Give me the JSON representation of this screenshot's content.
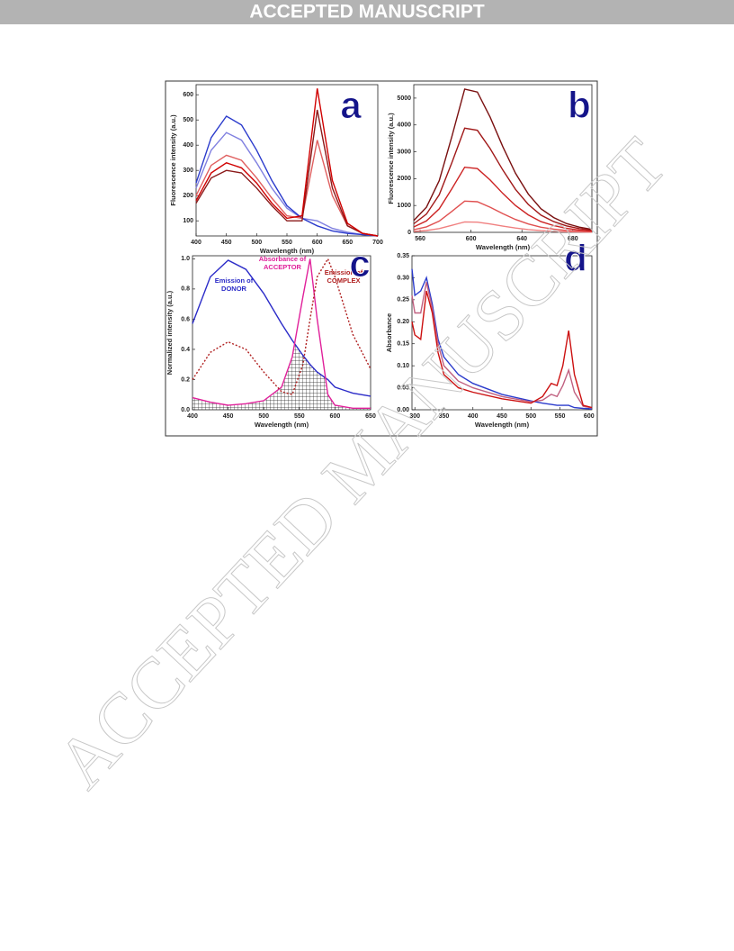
{
  "header": {
    "banner": "ACCEPTED MANUSCRIPT"
  },
  "watermark": "ACCEPTED MANUSCRIPT",
  "chart_data": [
    {
      "type": "line",
      "label": "a",
      "x_label": "Wavelength (nm)",
      "y_label": "Fluorescence intensity (a.u.)",
      "x": [
        400,
        425,
        450,
        475,
        500,
        525,
        550,
        575,
        600,
        625,
        650,
        675,
        700
      ],
      "xlim": [
        400,
        700
      ],
      "xticks": [
        400,
        450,
        500,
        550,
        600,
        650,
        700
      ],
      "ylim": [
        40,
        640
      ],
      "yticks": [
        100,
        200,
        300,
        400,
        500,
        600
      ],
      "series": [
        {
          "color": "#8080e0",
          "values": [
            230,
            380,
            450,
            420,
            330,
            230,
            150,
            110,
            100,
            70,
            55,
            45,
            40
          ]
        },
        {
          "color": "#2b3bcc",
          "values": [
            250,
            430,
            515,
            480,
            380,
            260,
            160,
            110,
            80,
            60,
            50,
            45,
            40
          ]
        },
        {
          "color": "#e06060",
          "values": [
            200,
            320,
            360,
            340,
            270,
            190,
            120,
            110,
            420,
            200,
            80,
            50,
            40
          ]
        },
        {
          "color": "#8b1a1a",
          "values": [
            170,
            270,
            300,
            290,
            230,
            160,
            100,
            100,
            540,
            230,
            80,
            50,
            40
          ]
        },
        {
          "color": "#d00000",
          "values": [
            180,
            290,
            330,
            310,
            250,
            170,
            110,
            120,
            625,
            260,
            90,
            50,
            40
          ]
        }
      ]
    },
    {
      "type": "line",
      "label": "b",
      "x_label": "Wavelength (nm)",
      "y_label": "Fluorescence intensity (a.u.)",
      "x": [
        555,
        565,
        575,
        585,
        595,
        605,
        615,
        625,
        635,
        645,
        655,
        665,
        675,
        685,
        695
      ],
      "xlim": [
        555,
        695
      ],
      "xticks": [
        560,
        600,
        640,
        680
      ],
      "ylim": [
        0,
        5500
      ],
      "yticks": [
        0,
        1000,
        2000,
        3000,
        4000,
        5000
      ],
      "series": [
        {
          "color": "#f08080",
          "values": [
            32,
            68,
            140,
            260,
            388,
            380,
            312,
            232,
            160,
            104,
            64,
            40,
            24,
            14,
            8
          ]
        },
        {
          "color": "#e05050",
          "values": [
            96,
            204,
            420,
            780,
            1164,
            1140,
            936,
            696,
            480,
            312,
            192,
            120,
            72,
            42,
            24
          ]
        },
        {
          "color": "#cc2222",
          "values": [
            200,
            425,
            875,
            1625,
            2425,
            2375,
            1950,
            1450,
            1000,
            650,
            400,
            250,
            150,
            88,
            50
          ]
        },
        {
          "color": "#a01818",
          "values": [
            320,
            680,
            1400,
            2600,
            3880,
            3800,
            3120,
            2320,
            1600,
            1040,
            640,
            400,
            240,
            140,
            80
          ]
        },
        {
          "color": "#7a1010",
          "values": [
            440,
            935,
            1925,
            3575,
            5335,
            5225,
            4290,
            3190,
            2200,
            1430,
            880,
            550,
            330,
            193,
            110
          ]
        }
      ]
    },
    {
      "type": "line",
      "label": "c",
      "x_label": "Wavelength (nm)",
      "y_label": "Normalized intensity (a.u.)",
      "x": [
        400,
        425,
        450,
        475,
        500,
        525,
        540,
        555,
        565,
        575,
        590,
        600,
        625,
        650
      ],
      "xlim": [
        400,
        650
      ],
      "xticks": [
        400,
        450,
        500,
        550,
        600,
        650
      ],
      "ylim": [
        0,
        1.02
      ],
      "yticks": [
        {
          "value": 0,
          "label": "0.0"
        },
        0.2,
        0.4,
        0.6,
        0.8,
        {
          "value": 1,
          "label": "1.0"
        }
      ],
      "overlap_hatch": true,
      "annotations": [
        [
          "Emission of",
          "DONOR"
        ],
        [
          "Absorbance of",
          "ACCEPTOR"
        ],
        [
          "Emission of",
          "COMPLEX"
        ]
      ],
      "series": [
        {
          "color": "#2b2bc8",
          "values": [
            0.57,
            0.88,
            0.99,
            0.93,
            0.77,
            0.57,
            0.46,
            0.36,
            0.3,
            0.25,
            0.2,
            0.15,
            0.11,
            0.09
          ]
        },
        {
          "color": "#e0209a",
          "values": [
            0.08,
            0.05,
            0.03,
            0.04,
            0.06,
            0.15,
            0.35,
            0.75,
            1.0,
            0.6,
            0.1,
            0.03,
            0.01,
            0.01
          ]
        },
        {
          "color": "#b02020",
          "dashed": true,
          "values": [
            0.2,
            0.38,
            0.45,
            0.4,
            0.25,
            0.12,
            0.1,
            0.3,
            0.6,
            0.88,
            1.0,
            0.88,
            0.5,
            0.27
          ]
        }
      ]
    },
    {
      "type": "line",
      "label": "d",
      "x_label": "Wavelength (nm)",
      "y_label": "Absorbance",
      "x": [
        295,
        300,
        310,
        320,
        330,
        340,
        350,
        375,
        400,
        450,
        500,
        520,
        535,
        545,
        555,
        565,
        575,
        590,
        605
      ],
      "xlim": [
        295,
        605
      ],
      "xticks": [
        300,
        350,
        400,
        450,
        500,
        550,
        600
      ],
      "ylim": [
        0,
        0.35
      ],
      "yticks": [
        {
          "value": 0,
          "label": "0.00"
        },
        0.05,
        {
          "value": 0.1,
          "label": "0.10"
        },
        0.15,
        {
          "value": 0.2,
          "label": "0.20"
        },
        0.25,
        {
          "value": 0.3,
          "label": "0.30"
        },
        0.35
      ],
      "series": [
        {
          "color": "#2b3bcc",
          "values": [
            0.32,
            0.26,
            0.27,
            0.3,
            0.24,
            0.16,
            0.12,
            0.08,
            0.06,
            0.035,
            0.02,
            0.015,
            0.012,
            0.01,
            0.01,
            0.01,
            0.005,
            0.003,
            0.002
          ]
        },
        {
          "color": "#c06080",
          "values": [
            0.26,
            0.22,
            0.22,
            0.29,
            0.23,
            0.15,
            0.1,
            0.065,
            0.05,
            0.03,
            0.018,
            0.022,
            0.035,
            0.03,
            0.055,
            0.09,
            0.04,
            0.008,
            0.004
          ]
        },
        {
          "color": "#cc1010",
          "values": [
            0.2,
            0.17,
            0.16,
            0.27,
            0.22,
            0.13,
            0.08,
            0.05,
            0.04,
            0.025,
            0.015,
            0.03,
            0.06,
            0.055,
            0.1,
            0.18,
            0.08,
            0.01,
            0.005
          ]
        }
      ]
    }
  ]
}
